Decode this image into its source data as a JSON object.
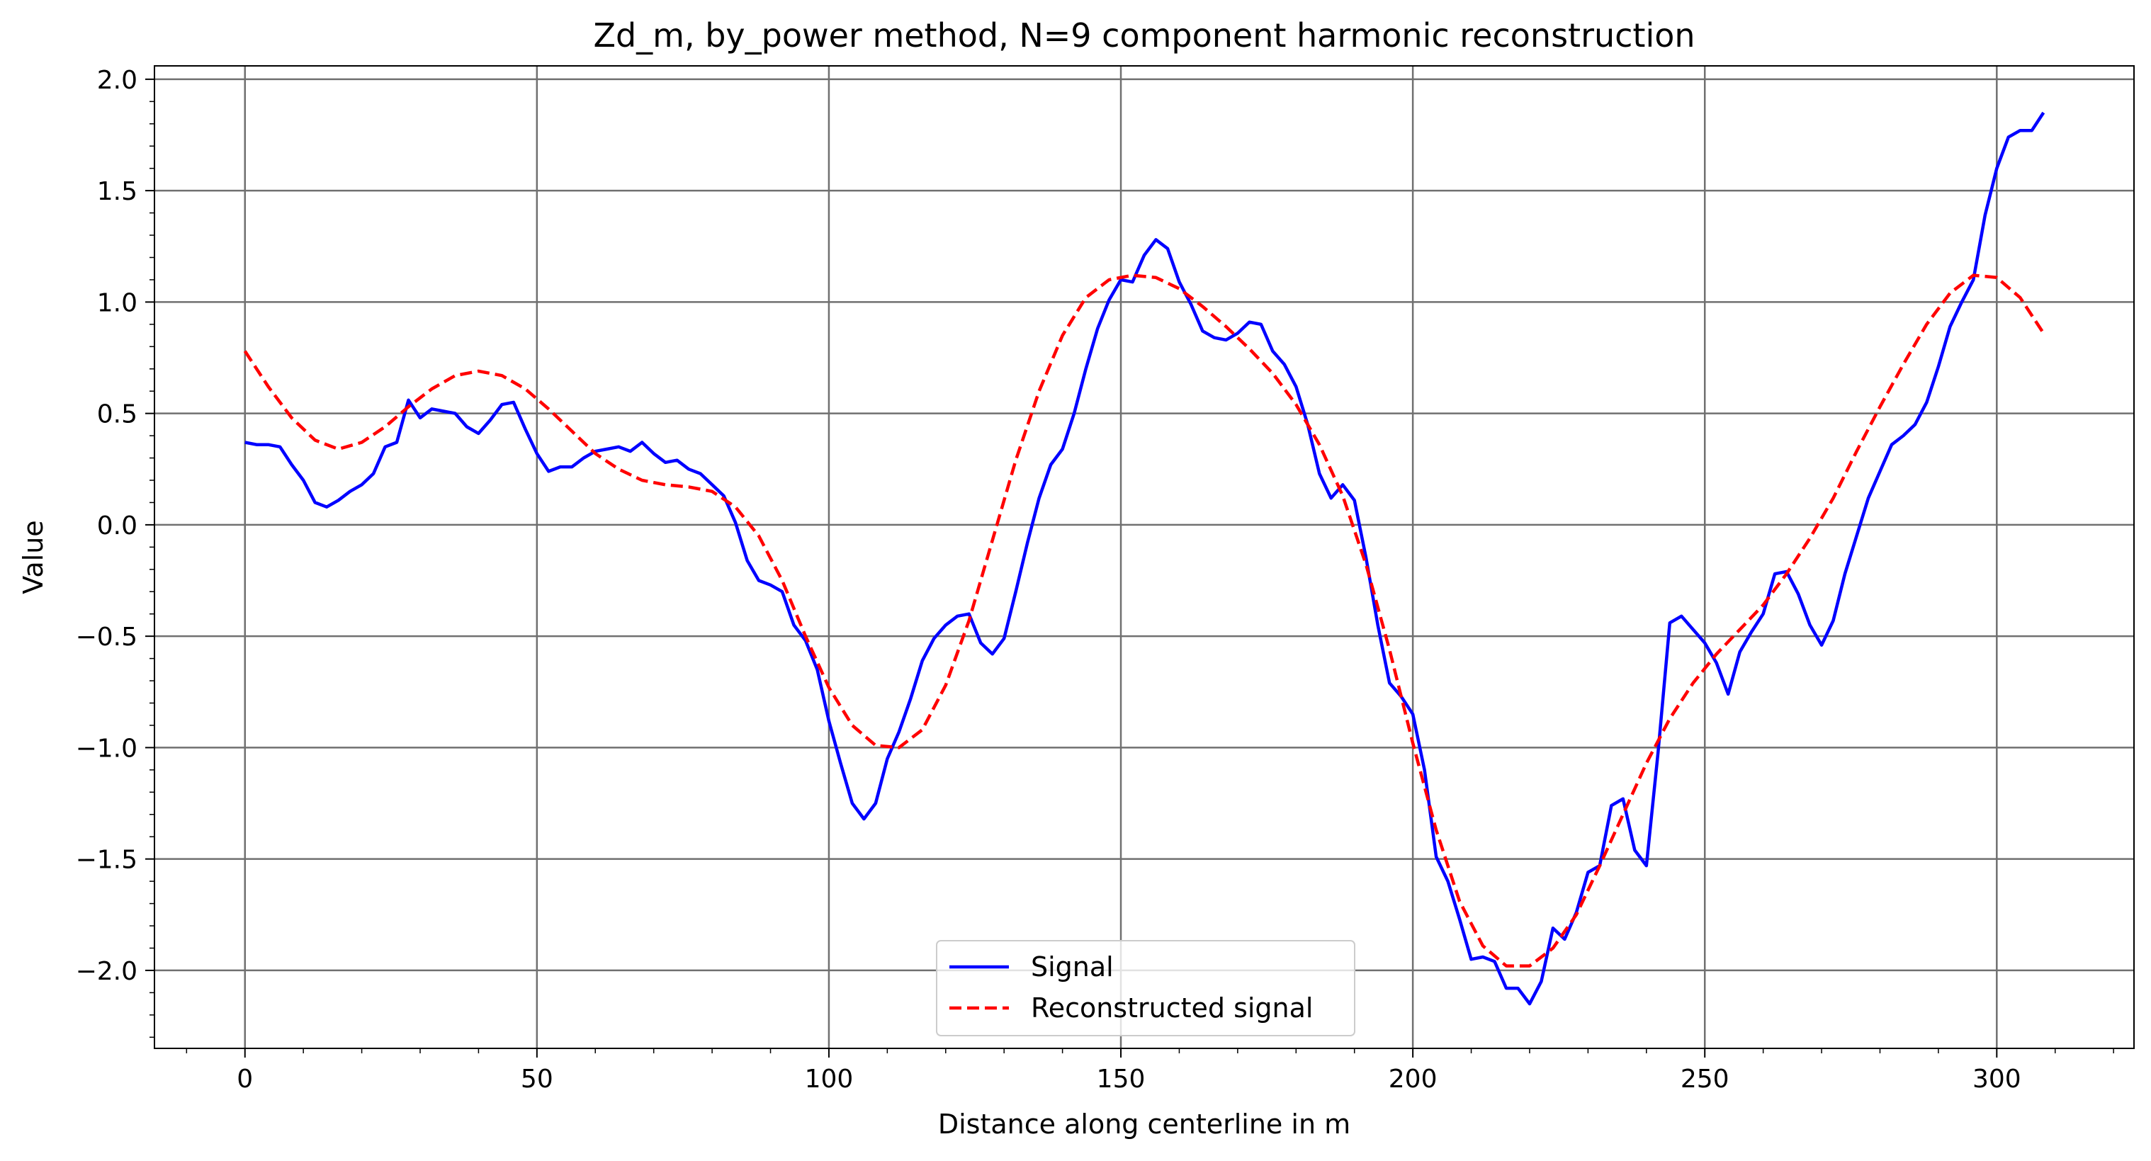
{
  "chart_data": {
    "type": "line",
    "title": "Zd_m, by_power method, N=9 component harmonic reconstruction",
    "xlabel": "Distance along centerline in m",
    "ylabel": "Value",
    "xlim": [
      -15.5,
      323.5
    ],
    "ylim": [
      -2.35,
      2.06
    ],
    "xticks": [
      0,
      50,
      100,
      150,
      200,
      250,
      300
    ],
    "xtick_labels": [
      "0",
      "50",
      "100",
      "150",
      "200",
      "250",
      "300"
    ],
    "yticks": [
      2.0,
      1.5,
      1.0,
      0.5,
      0.0,
      -0.5,
      -1.0,
      -1.5,
      -2.0
    ],
    "ytick_labels": [
      "2.0",
      "1.5",
      "1.0",
      "0.5",
      "0.0",
      "−0.5",
      "−1.0",
      "−1.5",
      "−2.0"
    ],
    "grid": true,
    "legend_position": "bottom-center",
    "series": [
      {
        "name": "Signal",
        "color": "#0000ff",
        "style": "solid",
        "x": [
          0,
          2,
          4,
          6,
          8,
          10,
          12,
          14,
          16,
          18,
          20,
          22,
          24,
          26,
          28,
          30,
          32,
          34,
          36,
          38,
          40,
          42,
          44,
          46,
          48,
          50,
          52,
          54,
          56,
          58,
          60,
          62,
          64,
          66,
          68,
          70,
          72,
          74,
          76,
          78,
          80,
          82,
          84,
          86,
          88,
          90,
          92,
          94,
          96,
          98,
          100,
          102,
          104,
          106,
          108,
          110,
          112,
          114,
          116,
          118,
          120,
          122,
          124,
          126,
          128,
          130,
          132,
          134,
          136,
          138,
          140,
          142,
          144,
          146,
          148,
          150,
          152,
          154,
          156,
          158,
          160,
          162,
          164,
          166,
          168,
          170,
          172,
          174,
          176,
          178,
          180,
          182,
          184,
          186,
          188,
          190,
          192,
          194,
          196,
          198,
          200,
          202,
          204,
          206,
          208,
          210,
          212,
          214,
          216,
          218,
          220,
          222,
          224,
          226,
          228,
          230,
          232,
          234,
          236,
          238,
          240,
          242,
          244,
          246,
          248,
          250,
          252,
          254,
          256,
          258,
          260,
          262,
          264,
          266,
          268,
          270,
          272,
          274,
          276,
          278,
          280,
          282,
          284,
          286,
          288,
          290,
          292,
          294,
          296,
          298,
          300,
          302,
          304,
          306,
          308
        ],
        "y": [
          0.37,
          0.36,
          0.36,
          0.35,
          0.27,
          0.2,
          0.1,
          0.08,
          0.11,
          0.15,
          0.18,
          0.23,
          0.35,
          0.37,
          0.56,
          0.48,
          0.52,
          0.51,
          0.5,
          0.44,
          0.41,
          0.47,
          0.54,
          0.55,
          0.43,
          0.32,
          0.24,
          0.26,
          0.26,
          0.3,
          0.33,
          0.34,
          0.35,
          0.33,
          0.37,
          0.32,
          0.28,
          0.29,
          0.25,
          0.23,
          0.18,
          0.13,
          0.01,
          -0.16,
          -0.25,
          -0.27,
          -0.3,
          -0.45,
          -0.52,
          -0.65,
          -0.88,
          -1.07,
          -1.25,
          -1.32,
          -1.25,
          -1.05,
          -0.93,
          -0.78,
          -0.61,
          -0.51,
          -0.45,
          -0.41,
          -0.4,
          -0.53,
          -0.58,
          -0.51,
          -0.3,
          -0.08,
          0.12,
          0.27,
          0.34,
          0.5,
          0.7,
          0.88,
          1.01,
          1.1,
          1.09,
          1.21,
          1.28,
          1.24,
          1.09,
          0.99,
          0.87,
          0.84,
          0.83,
          0.86,
          0.91,
          0.9,
          0.78,
          0.72,
          0.62,
          0.45,
          0.23,
          0.12,
          0.18,
          0.11,
          -0.15,
          -0.45,
          -0.71,
          -0.77,
          -0.85,
          -1.1,
          -1.49,
          -1.6,
          -1.77,
          -1.95,
          -1.94,
          -1.96,
          -2.08,
          -2.08,
          -2.15,
          -2.05,
          -1.81,
          -1.86,
          -1.74,
          -1.56,
          -1.53,
          -1.26,
          -1.23,
          -1.46,
          -1.53,
          -1.02,
          -0.44,
          -0.41,
          -0.47,
          -0.53,
          -0.62,
          -0.76,
          -0.57,
          -0.48,
          -0.4,
          -0.22,
          -0.21,
          -0.31,
          -0.45,
          -0.54,
          -0.43,
          -0.22,
          -0.05,
          0.12,
          0.24,
          0.36,
          0.4,
          0.45,
          0.55,
          0.71,
          0.89,
          1.0,
          1.1,
          1.39,
          1.6,
          1.74,
          1.77,
          1.77,
          1.85
        ]
      },
      {
        "name": "Reconstructed signal",
        "color": "#ff0000",
        "style": "dashed",
        "x": [
          0,
          4,
          8,
          12,
          16,
          20,
          24,
          28,
          32,
          36,
          40,
          44,
          48,
          52,
          56,
          60,
          64,
          68,
          72,
          76,
          80,
          84,
          88,
          92,
          96,
          100,
          104,
          108,
          112,
          116,
          120,
          124,
          128,
          132,
          136,
          140,
          144,
          148,
          152,
          156,
          160,
          164,
          168,
          172,
          176,
          180,
          184,
          188,
          192,
          196,
          200,
          204,
          208,
          212,
          216,
          220,
          224,
          228,
          232,
          236,
          240,
          244,
          248,
          252,
          256,
          260,
          264,
          268,
          272,
          276,
          280,
          284,
          288,
          292,
          296,
          300,
          304,
          308
        ],
        "y": [
          0.78,
          0.62,
          0.48,
          0.38,
          0.34,
          0.37,
          0.44,
          0.53,
          0.61,
          0.67,
          0.69,
          0.67,
          0.61,
          0.52,
          0.42,
          0.32,
          0.25,
          0.2,
          0.18,
          0.17,
          0.15,
          0.08,
          -0.05,
          -0.25,
          -0.5,
          -0.73,
          -0.9,
          -0.99,
          -1.0,
          -0.92,
          -0.72,
          -0.43,
          -0.07,
          0.29,
          0.6,
          0.85,
          1.02,
          1.1,
          1.12,
          1.11,
          1.06,
          0.98,
          0.89,
          0.79,
          0.68,
          0.54,
          0.36,
          0.13,
          -0.18,
          -0.56,
          -0.98,
          -1.37,
          -1.69,
          -1.89,
          -1.98,
          -1.98,
          -1.9,
          -1.75,
          -1.53,
          -1.3,
          -1.07,
          -0.87,
          -0.71,
          -0.58,
          -0.47,
          -0.36,
          -0.22,
          -0.06,
          0.12,
          0.33,
          0.53,
          0.72,
          0.9,
          1.04,
          1.12,
          1.11,
          1.02,
          0.86
        ]
      }
    ]
  }
}
